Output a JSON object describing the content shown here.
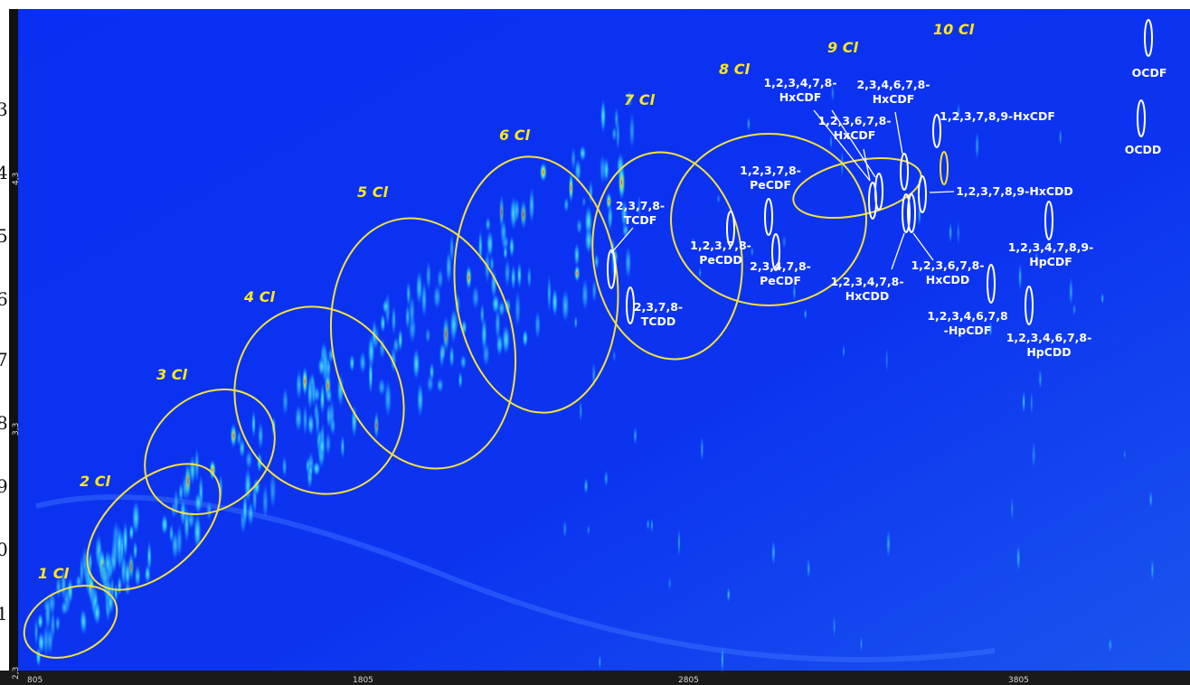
{
  "groups": [
    "1 Cl",
    "2 Cl",
    "3 Cl",
    "4 Cl",
    "5 Cl",
    "6 Cl",
    "7 Cl",
    "8 Cl",
    "9 Cl",
    "10 Cl"
  ],
  "compounds": [
    {
      "lines": [
        "1,2,3,4,7,8-",
        "HxCDF"
      ]
    },
    {
      "lines": [
        "2,3,4,6,7,8-",
        "HxCDF"
      ]
    },
    {
      "lines": [
        "1,2,3,6,7,8-",
        "HxCDF"
      ]
    },
    {
      "lines": [
        "1,2,3,7,8,9-HxCDF"
      ]
    },
    {
      "lines": [
        "OCDF"
      ]
    },
    {
      "lines": [
        "OCDD"
      ]
    },
    {
      "lines": [
        "1,2,3,7,8-",
        "PeCDF"
      ]
    },
    {
      "lines": [
        "1,2,3,7,8,9-HxCDD"
      ]
    },
    {
      "lines": [
        "2,3,7,8-",
        "TCDF"
      ]
    },
    {
      "lines": [
        "1,2,3,7,8-",
        "PeCDD"
      ]
    },
    {
      "lines": [
        "2,3,4,7,8-",
        "PeCDF"
      ]
    },
    {
      "lines": [
        "1,2,3,4,7,8,9-",
        "HpCDF"
      ]
    },
    {
      "lines": [
        "1,2,3,6,7,8-",
        "HxCDD"
      ]
    },
    {
      "lines": [
        "1,2,3,4,7,8-",
        "HxCDD"
      ]
    },
    {
      "lines": [
        "2,3,7,8-",
        "TCDD"
      ]
    },
    {
      "lines": [
        "1,2,3,4,6,7,8",
        "-HpCDF"
      ]
    },
    {
      "lines": [
        "1,2,3,4,6,7,8-",
        "HpCDD"
      ]
    }
  ],
  "x_axis": {
    "ticks": [
      "805",
      "1805",
      "2805",
      "3805"
    ]
  },
  "y_axis": {
    "ticks": [
      "3",
      "4",
      "5",
      "6",
      "7",
      "8",
      "9",
      "0",
      "1"
    ],
    "inner_ticks": [
      "4,3",
      "3,3",
      "2,3"
    ]
  }
}
